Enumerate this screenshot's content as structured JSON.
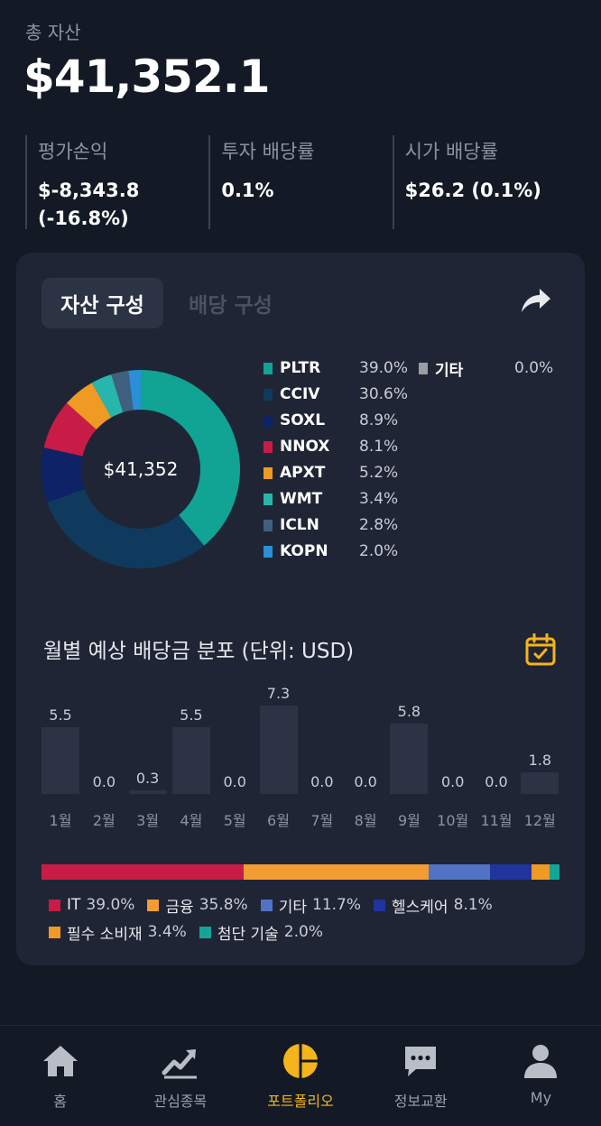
{
  "summary": {
    "total_label": "총 자산",
    "total_value": "$41,352.1",
    "stats": [
      {
        "label": "평가손익",
        "value": "$-8,343.8\n(-16.8%)"
      },
      {
        "label": "투자 배당률",
        "value": "0.1%"
      },
      {
        "label": "시가 배당률",
        "value": "$26.2 (0.1%)"
      }
    ]
  },
  "card": {
    "tabs": [
      {
        "label": "자산 구성",
        "active": true
      },
      {
        "label": "배당 구성",
        "active": false
      }
    ],
    "share_icon": "share-icon",
    "donut_center": "$41,352"
  },
  "holdings": [
    {
      "ticker": "PLTR",
      "pct": "39.0%",
      "value": 39.0,
      "color": "#11a394"
    },
    {
      "ticker": "CCIV",
      "pct": "30.6%",
      "value": 30.6,
      "color": "#0f3a5e"
    },
    {
      "ticker": "SOXL",
      "pct": "8.9%",
      "value": 8.9,
      "color": "#0e2266"
    },
    {
      "ticker": "NNOX",
      "pct": "8.1%",
      "value": 8.1,
      "color": "#c81c46"
    },
    {
      "ticker": "APXT",
      "pct": "5.2%",
      "value": 5.2,
      "color": "#ef9a24"
    },
    {
      "ticker": "WMT",
      "pct": "3.4%",
      "value": 3.4,
      "color": "#27b6ab"
    },
    {
      "ticker": "ICLN",
      "pct": "2.8%",
      "value": 2.8,
      "color": "#3f607e"
    },
    {
      "ticker": "KOPN",
      "pct": "2.0%",
      "value": 2.0,
      "color": "#2a8fd6"
    },
    {
      "ticker": "기타",
      "pct": "0.0%",
      "value": 0.0,
      "color": "#9a9da4"
    }
  ],
  "monthly": {
    "title": "월별 예상 배당금 분포 (단위: USD)",
    "calendar_icon": "calendar-icon"
  },
  "chart_data": {
    "type": "bar",
    "categories": [
      "1월",
      "2월",
      "3월",
      "4월",
      "5월",
      "6월",
      "7월",
      "8월",
      "9월",
      "10월",
      "11월",
      "12월"
    ],
    "values": [
      5.5,
      0.0,
      0.3,
      5.5,
      0.0,
      7.3,
      0.0,
      0.0,
      5.8,
      0.0,
      0.0,
      1.8
    ],
    "value_labels": [
      "5.5",
      "0.0",
      "0.3",
      "5.5",
      "0.0",
      "7.3",
      "0.0",
      "0.0",
      "5.8",
      "0.0",
      "0.0",
      "1.8"
    ],
    "title": "월별 예상 배당금 분포 (단위: USD)",
    "ylim": [
      0,
      7.3
    ]
  },
  "sectors": [
    {
      "name": "IT",
      "pct": "39.0%",
      "value": 39.0,
      "color": "#c81c46"
    },
    {
      "name": "금융",
      "pct": "35.8%",
      "value": 35.8,
      "color": "#f39c33"
    },
    {
      "name": "기타",
      "pct": "11.7%",
      "value": 11.7,
      "color": "#5272c4"
    },
    {
      "name": "헬스케어",
      "pct": "8.1%",
      "value": 8.1,
      "color": "#21349c"
    },
    {
      "name": "필수 소비재",
      "pct": "3.4%",
      "value": 3.4,
      "color": "#ef9a24"
    },
    {
      "name": "첨단 기술",
      "pct": "2.0%",
      "value": 2.0,
      "color": "#14a596"
    }
  ],
  "nav": [
    {
      "label": "홈",
      "icon": "home-icon",
      "active": false
    },
    {
      "label": "관심종목",
      "icon": "trend-chart-icon",
      "active": false
    },
    {
      "label": "포트폴리오",
      "icon": "pie-chart-icon",
      "active": true
    },
    {
      "label": "정보교환",
      "icon": "chat-bubble-icon",
      "active": false
    },
    {
      "label": "My",
      "icon": "user-icon",
      "active": false
    }
  ],
  "colors": {
    "background": "#131a26",
    "card": "#1f2535",
    "accent": "#f4b41a"
  }
}
